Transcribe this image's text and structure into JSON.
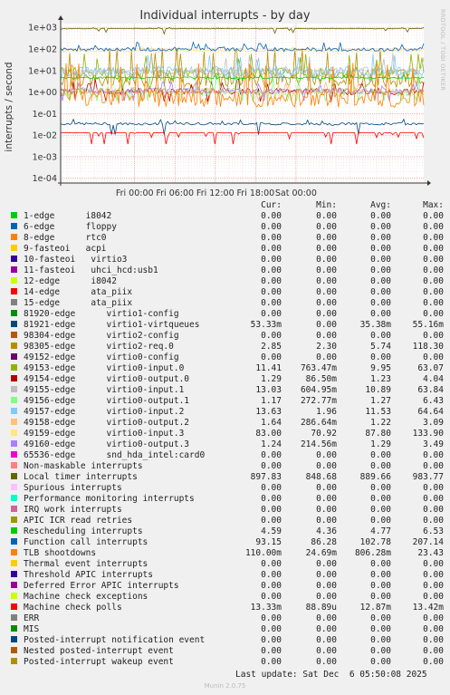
{
  "chart_data": {
    "type": "line",
    "title": "Individual interrupts - by day",
    "ylabel": "interrupts / second",
    "side_label": "RRDTOOL / TOBI OETIKER",
    "yscale": "log",
    "ylim": [
      6e-05,
      1500
    ],
    "yticks": [
      {
        "v": 1000,
        "label": "1e+03"
      },
      {
        "v": 100,
        "label": "1e+02"
      },
      {
        "v": 10,
        "label": "1e+01"
      },
      {
        "v": 1,
        "label": "1e+00"
      },
      {
        "v": 0.1,
        "label": "1e-01"
      },
      {
        "v": 0.01,
        "label": "1e-02"
      },
      {
        "v": 0.001,
        "label": "1e-03"
      },
      {
        "v": 0.0001,
        "label": "1e-04"
      }
    ],
    "xlim": [
      -11,
      43
    ],
    "xunit": "hours since Fri 00:00",
    "xticks": [
      {
        "v": 0,
        "label": "Fri 00:00"
      },
      {
        "v": 6,
        "label": "Fri 06:00"
      },
      {
        "v": 12,
        "label": "Fri 12:00"
      },
      {
        "v": 18,
        "label": "Fri 18:00"
      },
      {
        "v": 24,
        "label": "Sat 00:00"
      }
    ],
    "grid": true,
    "columns": [
      "Cur:",
      "Min:",
      "Avg:",
      "Max:"
    ],
    "series": [
      {
        "name": "1-edge      i8042",
        "color": "#00cc00",
        "cur": "0.00",
        "min": "0.00",
        "avg": "0.00",
        "max": "0.00"
      },
      {
        "name": "6-edge      floppy",
        "color": "#0066b3",
        "cur": "0.00",
        "min": "0.00",
        "avg": "0.00",
        "max": "0.00"
      },
      {
        "name": "8-edge      rtc0",
        "color": "#ff8000",
        "cur": "0.00",
        "min": "0.00",
        "avg": "0.00",
        "max": "0.00"
      },
      {
        "name": "9-fasteoi   acpi",
        "color": "#ffcc00",
        "cur": "0.00",
        "min": "0.00",
        "avg": "0.00",
        "max": "0.00"
      },
      {
        "name": "10-fasteoi   virtio3",
        "color": "#330099",
        "cur": "0.00",
        "min": "0.00",
        "avg": "0.00",
        "max": "0.00"
      },
      {
        "name": "11-fasteoi   uhci_hcd:usb1",
        "color": "#990099",
        "cur": "0.00",
        "min": "0.00",
        "avg": "0.00",
        "max": "0.00"
      },
      {
        "name": "12-edge      i8042",
        "color": "#ccff00",
        "cur": "0.00",
        "min": "0.00",
        "avg": "0.00",
        "max": "0.00"
      },
      {
        "name": "14-edge      ata_piix",
        "color": "#ff0000",
        "cur": "0.00",
        "min": "0.00",
        "avg": "0.00",
        "max": "0.00"
      },
      {
        "name": "15-edge      ata_piix",
        "color": "#808080",
        "cur": "0.00",
        "min": "0.00",
        "avg": "0.00",
        "max": "0.00"
      },
      {
        "name": "81920-edge      virtio1-config",
        "color": "#008f00",
        "cur": "0.00",
        "min": "0.00",
        "avg": "0.00",
        "max": "0.00"
      },
      {
        "name": "81921-edge      virtio1-virtqueues",
        "color": "#00487d",
        "cur": "53.33m",
        "min": "0.00",
        "avg": "35.38m",
        "max": "55.16m"
      },
      {
        "name": "98304-edge      virtio2-config",
        "color": "#b35a00",
        "cur": "0.00",
        "min": "0.00",
        "avg": "0.00",
        "max": "0.00"
      },
      {
        "name": "98305-edge      virtio2-req.0",
        "color": "#b38f00",
        "cur": "2.85",
        "min": "2.30",
        "avg": "5.74",
        "max": "118.30"
      },
      {
        "name": "49152-edge      virtio0-config",
        "color": "#6b006b",
        "cur": "0.00",
        "min": "0.00",
        "avg": "0.00",
        "max": "0.00"
      },
      {
        "name": "49153-edge      virtio0-input.0",
        "color": "#8fb300",
        "cur": "11.41",
        "min": "763.47m",
        "avg": "9.95",
        "max": "63.07"
      },
      {
        "name": "49154-edge      virtio0-output.0",
        "color": "#b30000",
        "cur": "1.29",
        "min": "86.50m",
        "avg": "1.23",
        "max": "4.04"
      },
      {
        "name": "49155-edge      virtio0-input.1",
        "color": "#bebebe",
        "cur": "13.03",
        "min": "604.95m",
        "avg": "10.89",
        "max": "63.84"
      },
      {
        "name": "49156-edge      virtio0-output.1",
        "color": "#80ff80",
        "cur": "1.17",
        "min": "272.77m",
        "avg": "1.27",
        "max": "6.43"
      },
      {
        "name": "49157-edge      virtio0-input.2",
        "color": "#80c9ff",
        "cur": "13.63",
        "min": "1.96",
        "avg": "11.53",
        "max": "64.64"
      },
      {
        "name": "49158-edge      virtio0-output.2",
        "color": "#ffc080",
        "cur": "1.64",
        "min": "286.64m",
        "avg": "1.22",
        "max": "3.09"
      },
      {
        "name": "49159-edge      virtio0-input.3",
        "color": "#ffe680",
        "cur": "83.00",
        "min": "70.92",
        "avg": "87.80",
        "max": "133.90"
      },
      {
        "name": "49160-edge      virtio0-output.3",
        "color": "#aa80ff",
        "cur": "1.24",
        "min": "214.56m",
        "avg": "1.29",
        "max": "3.49"
      },
      {
        "name": "65536-edge      snd_hda_intel:card0",
        "color": "#ee00cc",
        "cur": "0.00",
        "min": "0.00",
        "avg": "0.00",
        "max": "0.00"
      },
      {
        "name": "Non-maskable interrupts",
        "color": "#ff8080",
        "cur": "0.00",
        "min": "0.00",
        "avg": "0.00",
        "max": "0.00"
      },
      {
        "name": "Local timer interrupts",
        "color": "#666600",
        "cur": "897.83",
        "min": "848.68",
        "avg": "889.66",
        "max": "983.77"
      },
      {
        "name": "Spurious interrupts",
        "color": "#ffbfff",
        "cur": "0.00",
        "min": "0.00",
        "avg": "0.00",
        "max": "0.00"
      },
      {
        "name": "Performance monitoring interrupts",
        "color": "#00ffcc",
        "cur": "0.00",
        "min": "0.00",
        "avg": "0.00",
        "max": "0.00"
      },
      {
        "name": "IRQ work interrupts",
        "color": "#cc6699",
        "cur": "0.00",
        "min": "0.00",
        "avg": "0.00",
        "max": "0.00"
      },
      {
        "name": "APIC ICR read retries",
        "color": "#999900",
        "cur": "0.00",
        "min": "0.00",
        "avg": "0.00",
        "max": "0.00"
      },
      {
        "name": "Rescheduling interrupts",
        "color": "#00cc00",
        "cur": "4.59",
        "min": "4.36",
        "avg": "4.77",
        "max": "6.53"
      },
      {
        "name": "Function call interrupts",
        "color": "#0066b3",
        "cur": "93.15",
        "min": "86.28",
        "avg": "102.78",
        "max": "207.14"
      },
      {
        "name": "TLB shootdowns",
        "color": "#ff8000",
        "cur": "110.00m",
        "min": "24.69m",
        "avg": "806.28m",
        "max": "23.43"
      },
      {
        "name": "Thermal event interrupts",
        "color": "#ffcc00",
        "cur": "0.00",
        "min": "0.00",
        "avg": "0.00",
        "max": "0.00"
      },
      {
        "name": "Threshold APIC interrupts",
        "color": "#330099",
        "cur": "0.00",
        "min": "0.00",
        "avg": "0.00",
        "max": "0.00"
      },
      {
        "name": "Deferred Error APIC interrupts",
        "color": "#990099",
        "cur": "0.00",
        "min": "0.00",
        "avg": "0.00",
        "max": "0.00"
      },
      {
        "name": "Machine check exceptions",
        "color": "#ccff00",
        "cur": "0.00",
        "min": "0.00",
        "avg": "0.00",
        "max": "0.00"
      },
      {
        "name": "Machine check polls",
        "color": "#ff0000",
        "cur": "13.33m",
        "min": "88.89u",
        "avg": "12.87m",
        "max": "13.42m"
      },
      {
        "name": "ERR",
        "color": "#808080",
        "cur": "0.00",
        "min": "0.00",
        "avg": "0.00",
        "max": "0.00"
      },
      {
        "name": "MIS",
        "color": "#008f00",
        "cur": "0.00",
        "min": "0.00",
        "avg": "0.00",
        "max": "0.00"
      },
      {
        "name": "Posted-interrupt notification event",
        "color": "#00487d",
        "cur": "0.00",
        "min": "0.00",
        "avg": "0.00",
        "max": "0.00"
      },
      {
        "name": "Nested posted-interrupt event",
        "color": "#b35a00",
        "cur": "0.00",
        "min": "0.00",
        "avg": "0.00",
        "max": "0.00"
      },
      {
        "name": "Posted-interrupt wakeup event",
        "color": "#b38f00",
        "cur": "0.00",
        "min": "0.00",
        "avg": "0.00",
        "max": "0.00"
      }
    ]
  },
  "footer": {
    "last_update": "Last update: Sat Dec  6 05:50:08 2025",
    "generator": "Munin 2.0.75"
  }
}
